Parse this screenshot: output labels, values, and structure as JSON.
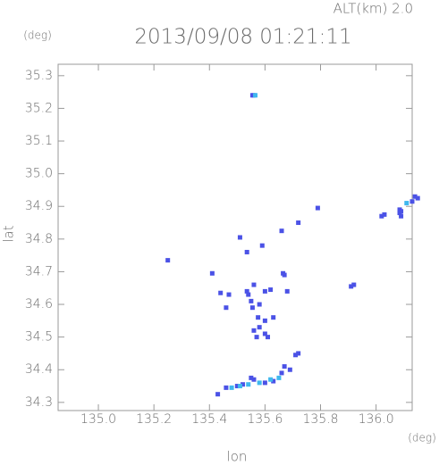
{
  "chart_data": {
    "type": "scatter",
    "title": "2013/09/08 01:21:11",
    "subtitle": "ALT(km) 2.0",
    "y_unit": "(deg)",
    "x_unit": "(deg)",
    "xlabel": "lon",
    "ylabel": "lat",
    "xlim": [
      134.855,
      136.13
    ],
    "ylim": [
      34.275,
      35.335
    ],
    "xticks": [
      {
        "value": 135.0,
        "label": "135.0"
      },
      135.2,
      135.4,
      135.6,
      135.8,
      {
        "value": 136.0,
        "label": "136.0"
      }
    ],
    "yticks": [
      35.3,
      35.2,
      35.1,
      {
        "value": 35.0,
        "label": "35.0"
      },
      34.9,
      34.8,
      34.7,
      34.6,
      34.5,
      34.4,
      34.3
    ],
    "marker_size": 5,
    "series": [
      {
        "color": "#4b52e6",
        "x": [
          135.555,
          135.56,
          135.79,
          135.72,
          135.66,
          135.51,
          135.59,
          135.535,
          135.25,
          136.02,
          136.03,
          136.085,
          136.09,
          136.085,
          136.09,
          136.15,
          136.14,
          136.13,
          135.41,
          135.665,
          135.67,
          135.92,
          135.91,
          135.44,
          135.47,
          135.535,
          135.54,
          135.56,
          135.6,
          135.62,
          135.68,
          135.55,
          135.555,
          135.58,
          135.46,
          135.575,
          135.6,
          135.63,
          135.58,
          135.56,
          135.6,
          135.57,
          135.61,
          135.72,
          135.71,
          135.67,
          135.69,
          135.66,
          135.55,
          135.56,
          135.43,
          135.46,
          135.5,
          135.52,
          135.6,
          135.63
        ],
        "values": [
          35.24,
          35.24,
          34.895,
          34.85,
          34.825,
          34.805,
          34.78,
          34.76,
          34.735,
          34.87,
          34.875,
          34.88,
          34.87,
          34.89,
          34.885,
          34.925,
          34.93,
          34.915,
          34.695,
          34.695,
          34.69,
          34.66,
          34.655,
          34.635,
          34.63,
          34.64,
          34.63,
          34.66,
          34.64,
          34.645,
          34.64,
          34.61,
          34.59,
          34.6,
          34.59,
          34.56,
          34.55,
          34.56,
          34.53,
          34.52,
          34.51,
          34.5,
          34.5,
          34.45,
          34.445,
          34.41,
          34.4,
          34.39,
          34.375,
          34.37,
          34.325,
          34.345,
          34.35,
          34.355,
          34.36,
          34.365
        ]
      },
      {
        "color": "#3fb8ee",
        "x": [
          135.565,
          135.48,
          135.51,
          135.54,
          135.58,
          135.62,
          135.65,
          136.11
        ],
        "values": [
          35.24,
          34.345,
          34.35,
          34.355,
          34.36,
          34.37,
          34.375,
          34.91
        ]
      }
    ]
  }
}
